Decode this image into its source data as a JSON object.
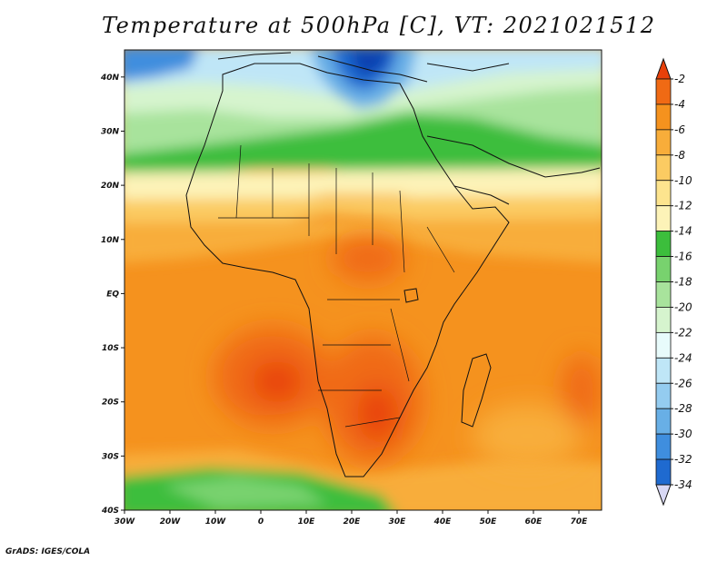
{
  "title": "Temperature at 500hPa [C], VT: 2021021512",
  "credit": "GrADS: IGES/COLA",
  "map": {
    "lon_labels": [
      "30W",
      "20W",
      "10W",
      "0",
      "10E",
      "20E",
      "30E",
      "40E",
      "50E",
      "60E",
      "70E"
    ],
    "lat_labels": [
      "40N",
      "30N",
      "20N",
      "10N",
      "EQ",
      "10S",
      "20S",
      "30S",
      "40S"
    ],
    "lon_range": [
      -30,
      75
    ],
    "lat_range": [
      -40,
      45
    ]
  },
  "colorbar": {
    "labels": [
      "-2",
      "-4",
      "-6",
      "-8",
      "-10",
      "-12",
      "-14",
      "-16",
      "-18",
      "-20",
      "-22",
      "-24",
      "-26",
      "-28",
      "-30",
      "-32",
      "-34"
    ],
    "colors": [
      "#e8400a",
      "#f06a14",
      "#f5921e",
      "#f8ad3a",
      "#fbcb62",
      "#fde48e",
      "#fdf3b8",
      "#3cbe3c",
      "#78d26e",
      "#a8e39c",
      "#d6f4ce",
      "#e8fbfb",
      "#bfe6f7",
      "#94ccf0",
      "#68afe6",
      "#3f8ede",
      "#1f6ad0",
      "#0d3fb0",
      "#0a1a7a",
      "#d8d8f5"
    ]
  }
}
